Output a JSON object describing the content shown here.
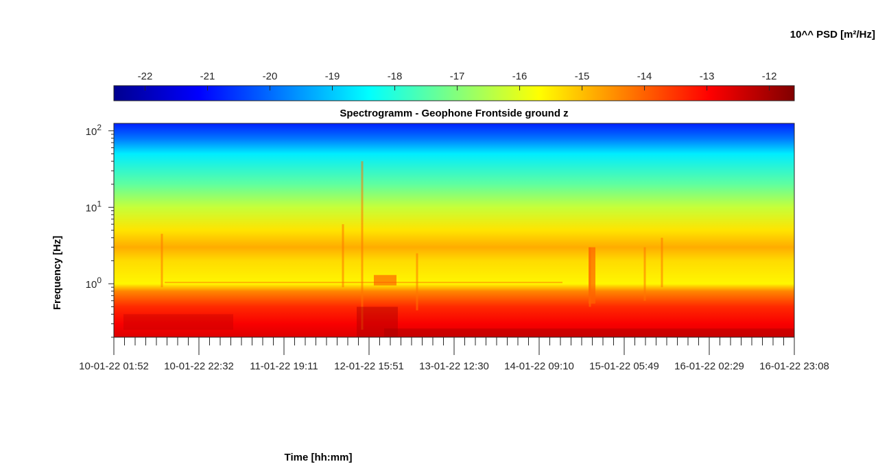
{
  "chart_data": {
    "type": "heatmap",
    "title": "Spectrogramm - Geophone Frontside ground z",
    "xlabel": "Time [hh:mm]",
    "ylabel": "Frequency [Hz]",
    "y_scale": "log",
    "ylim": [
      0.2,
      125
    ],
    "y_ticks": [
      {
        "value": 1,
        "mantissa": "10",
        "exp": "0"
      },
      {
        "value": 10,
        "mantissa": "10",
        "exp": "1"
      },
      {
        "value": 100,
        "mantissa": "10",
        "exp": "2"
      }
    ],
    "x_tick_labels": [
      "10-01-22 01:52",
      "10-01-22 22:32",
      "11-01-22 19:11",
      "12-01-22 15:51",
      "13-01-22 12:30",
      "14-01-22 09:10",
      "15-01-22 05:49",
      "16-01-22 02:29",
      "16-01-22 23:08"
    ],
    "colorbar": {
      "label": "10^^ PSD [m²/Hz]",
      "min": -22.5,
      "max": -11.6,
      "ticks": [
        -22,
        -21,
        -20,
        -19,
        -18,
        -17,
        -16,
        -15,
        -14,
        -13,
        -12
      ],
      "colormap": "jet"
    },
    "psd_profile_log10": [
      {
        "freq": 0.2,
        "psd": -12.6
      },
      {
        "freq": 0.3,
        "psd": -12.9
      },
      {
        "freq": 0.5,
        "psd": -13.4
      },
      {
        "freq": 0.8,
        "psd": -14.4
      },
      {
        "freq": 1.0,
        "psd": -15.6
      },
      {
        "freq": 2.0,
        "psd": -15.3
      },
      {
        "freq": 3.0,
        "psd": -14.8
      },
      {
        "freq": 5.0,
        "psd": -15.4
      },
      {
        "freq": 10,
        "psd": -16.3
      },
      {
        "freq": 20,
        "psd": -17.4
      },
      {
        "freq": 50,
        "psd": -18.6
      },
      {
        "freq": 80,
        "psd": -19.9
      },
      {
        "freq": 125,
        "psd": -20.8
      }
    ]
  }
}
